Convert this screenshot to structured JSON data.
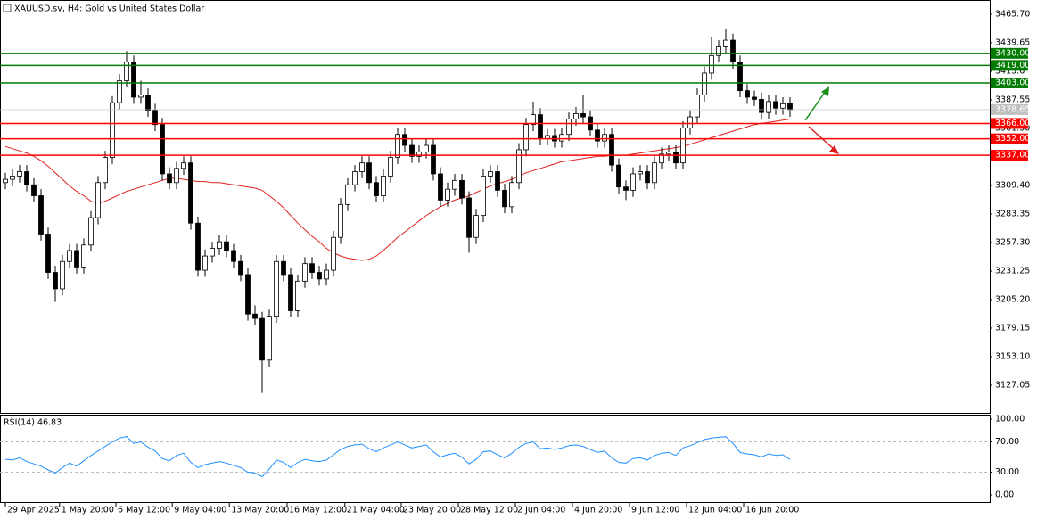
{
  "chart_data": {
    "type": "candlestick",
    "title": "XAUUSD.sv, H4:  Gold vs United States Dollar",
    "xlim": [
      -0.75,
      138
    ],
    "xticks": [
      {
        "value": 0,
        "label": "29 Apr 2025"
      },
      {
        "value": 7.6,
        "label": "1 May 20:00"
      },
      {
        "value": 15.5,
        "label": "6 May 12:00"
      },
      {
        "value": 23.4,
        "label": "9 May 04:00"
      },
      {
        "value": 31.4,
        "label": "13 May 20:00"
      },
      {
        "value": 39.5,
        "label": "16 May 12:00"
      },
      {
        "value": 47.6,
        "label": "21 May 04:00"
      },
      {
        "value": 55.5,
        "label": "23 May 20:00"
      },
      {
        "value": 63.5,
        "label": "28 May 12:00"
      },
      {
        "value": 71.5,
        "label": "2 Jun 04:00"
      },
      {
        "value": 79.5,
        "label": "4 Jun 20:00"
      },
      {
        "value": 87.5,
        "label": "9 Jun 12:00"
      },
      {
        "value": 95.5,
        "label": "12 Jun 04:00"
      },
      {
        "value": 103.5,
        "label": "16 Jun 20:00"
      }
    ],
    "ylim": [
      3101.8,
      3478.7
    ],
    "yticks": [
      {
        "value": 3465.7,
        "label": "3465.70"
      },
      3439.65,
      3413.6,
      3387.55,
      {
        "value": 3361.5,
        "label": "3361.50"
      },
      {
        "value": 3309.4,
        "label": "3309.40"
      },
      3283.35,
      {
        "value": 3257.3,
        "label": "3257.30"
      },
      3231.25,
      {
        "value": 3205.2,
        "label": "3205.20"
      },
      3179.15,
      {
        "value": 3153.1,
        "label": "3153.10"
      },
      3127.05
    ],
    "open": [
      3312,
      3315,
      3318,
      3322,
      3310,
      3300,
      3265,
      3230,
      3215,
      3240,
      3250,
      3235,
      3255,
      3280,
      3312,
      3335,
      3385,
      3405,
      3422,
      3390,
      3392,
      3378,
      3365,
      3320,
      3312,
      3325,
      3330,
      3275,
      3232,
      3245,
      3252,
      3258,
      3250,
      3240,
      3228,
      3192,
      3188,
      3150,
      3190,
      3240,
      3228,
      3195,
      3222,
      3238,
      3230,
      3224,
      3232,
      3262,
      3292,
      3310,
      3322,
      3330,
      3312,
      3300,
      3318,
      3335,
      3356,
      3346,
      3336,
      3340,
      3346,
      3320,
      3296,
      3306,
      3314,
      3298,
      3262,
      3282,
      3318,
      3322,
      3305,
      3290,
      3312,
      3342,
      3365,
      3374,
      3352,
      3355,
      3350,
      3356,
      3370,
      3375,
      3372,
      3360,
      3350,
      3356,
      3328,
      3308,
      3305,
      3320,
      3322,
      3312,
      3330,
      3338,
      3340,
      3330,
      3362,
      3372,
      3392,
      3412,
      3428,
      3436,
      3442,
      3422,
      3396,
      3390,
      3388,
      3376,
      3386,
      3380,
      3384
    ],
    "high": [
      3321,
      3324,
      3328,
      3328,
      3316,
      3306,
      3271,
      3236,
      3246,
      3256,
      3256,
      3261,
      3286,
      3318,
      3341,
      3391,
      3411,
      3432,
      3428,
      3405,
      3398,
      3384,
      3371,
      3326,
      3331,
      3336,
      3336,
      3281,
      3251,
      3258,
      3264,
      3264,
      3256,
      3246,
      3234,
      3200,
      3194,
      3196,
      3246,
      3246,
      3234,
      3228,
      3244,
      3244,
      3236,
      3238,
      3268,
      3298,
      3316,
      3328,
      3336,
      3336,
      3318,
      3324,
      3341,
      3362,
      3362,
      3352,
      3346,
      3352,
      3352,
      3326,
      3312,
      3320,
      3320,
      3304,
      3288,
      3324,
      3328,
      3328,
      3311,
      3318,
      3348,
      3371,
      3386,
      3380,
      3361,
      3361,
      3362,
      3376,
      3381,
      3392,
      3378,
      3366,
      3362,
      3362,
      3334,
      3314,
      3326,
      3328,
      3328,
      3336,
      3344,
      3346,
      3346,
      3368,
      3378,
      3398,
      3418,
      3445,
      3442,
      3452,
      3448,
      3428,
      3402,
      3396,
      3394,
      3392,
      3392,
      3390,
      3390
    ],
    "low": [
      3306,
      3309,
      3312,
      3304,
      3294,
      3259,
      3224,
      3203,
      3209,
      3234,
      3229,
      3229,
      3249,
      3274,
      3306,
      3329,
      3379,
      3399,
      3384,
      3384,
      3372,
      3359,
      3314,
      3306,
      3306,
      3319,
      3269,
      3226,
      3226,
      3239,
      3246,
      3244,
      3234,
      3222,
      3186,
      3182,
      3120,
      3144,
      3184,
      3222,
      3189,
      3189,
      3216,
      3224,
      3218,
      3218,
      3226,
      3256,
      3286,
      3304,
      3316,
      3306,
      3294,
      3294,
      3312,
      3329,
      3340,
      3330,
      3330,
      3334,
      3314,
      3290,
      3290,
      3300,
      3292,
      3248,
      3256,
      3276,
      3312,
      3299,
      3284,
      3284,
      3306,
      3336,
      3359,
      3346,
      3346,
      3344,
      3344,
      3350,
      3364,
      3366,
      3354,
      3344,
      3344,
      3322,
      3302,
      3296,
      3299,
      3314,
      3306,
      3306,
      3324,
      3332,
      3324,
      3324,
      3356,
      3366,
      3386,
      3406,
      3422,
      3430,
      3416,
      3390,
      3384,
      3382,
      3370,
      3370,
      3374,
      3374,
      3372
    ],
    "close": [
      3315,
      3318,
      3322,
      3310,
      3300,
      3265,
      3230,
      3215,
      3240,
      3250,
      3235,
      3255,
      3280,
      3312,
      3335,
      3385,
      3405,
      3422,
      3390,
      3392,
      3378,
      3365,
      3320,
      3312,
      3325,
      3330,
      3275,
      3232,
      3245,
      3252,
      3258,
      3250,
      3240,
      3228,
      3192,
      3188,
      3150,
      3190,
      3240,
      3228,
      3195,
      3222,
      3238,
      3230,
      3224,
      3232,
      3262,
      3292,
      3310,
      3322,
      3330,
      3312,
      3300,
      3318,
      3335,
      3356,
      3346,
      3336,
      3340,
      3346,
      3320,
      3296,
      3306,
      3314,
      3298,
      3262,
      3282,
      3318,
      3322,
      3305,
      3290,
      3312,
      3342,
      3365,
      3374,
      3352,
      3355,
      3350,
      3356,
      3370,
      3375,
      3372,
      3360,
      3350,
      3356,
      3328,
      3308,
      3305,
      3320,
      3322,
      3312,
      3330,
      3338,
      3340,
      3330,
      3362,
      3372,
      3392,
      3412,
      3428,
      3436,
      3442,
      3422,
      3396,
      3390,
      3388,
      3376,
      3386,
      3380,
      3384,
      3378.65
    ],
    "ma": {
      "color": "#e01e1e",
      "values": [
        3345,
        3343,
        3341,
        3339,
        3336,
        3332,
        3327,
        3321,
        3315,
        3309,
        3304,
        3300,
        3295,
        3293,
        3295,
        3298,
        3301,
        3304,
        3306,
        3308,
        3310,
        3312,
        3314,
        3316,
        3316,
        3315,
        3314,
        3313,
        3313,
        3312,
        3312,
        3311,
        3310,
        3309,
        3308,
        3307,
        3305,
        3300,
        3295,
        3289,
        3282,
        3275,
        3269,
        3263,
        3258,
        3252,
        3248,
        3245,
        3243,
        3242,
        3241,
        3242,
        3245,
        3250,
        3256,
        3262,
        3267,
        3272,
        3277,
        3282,
        3286,
        3290,
        3293,
        3296,
        3298,
        3300,
        3303,
        3306,
        3309,
        3311,
        3313,
        3315,
        3318,
        3321,
        3323,
        3325,
        3327,
        3329,
        3331,
        3332,
        3333,
        3334,
        3335,
        3336,
        3336,
        3337,
        3337,
        3337,
        3338,
        3339,
        3340,
        3341,
        3342,
        3343,
        3344,
        3345,
        3347,
        3349,
        3351,
        3353,
        3355,
        3357,
        3359,
        3361,
        3363,
        3365,
        3366,
        3367,
        3368,
        3369,
        3370
      ]
    },
    "levels": [
      {
        "value": 3430,
        "label": "3430.00",
        "color": "#007a00"
      },
      {
        "value": 3419,
        "label": "3419.00",
        "color": "#007a00"
      },
      {
        "value": 3403,
        "label": "3403.00",
        "color": "#007a00"
      },
      {
        "value": 3366,
        "label": "3366.00",
        "color": "#ff0000"
      },
      {
        "value": 3352,
        "label": "3352.00",
        "color": "#ff0000"
      },
      {
        "value": 3337,
        "label": "3337.00",
        "color": "#ff0000"
      }
    ],
    "last_price": {
      "value": 3378.65,
      "label": "3378.65",
      "color": "#c0c0c0"
    },
    "rsi": {
      "label": "RSI(14) 46.83",
      "color": "#1e90ff",
      "ylim": [
        -9.4,
        105.9
      ],
      "yticks": [
        {
          "value": 100,
          "label": "100.00"
        },
        {
          "value": 70,
          "label": "70.00",
          "dashed": true
        },
        {
          "value": 30,
          "label": "30.00",
          "dashed": true
        },
        {
          "value": 0,
          "label": "0.00"
        }
      ],
      "values": [
        47,
        46,
        49,
        44,
        41,
        38,
        33,
        29,
        36,
        42,
        38,
        45,
        52,
        58,
        64,
        70,
        75,
        77,
        68,
        70,
        63,
        58,
        48,
        45,
        52,
        55,
        43,
        36,
        40,
        42,
        44,
        42,
        39,
        36,
        30,
        29,
        24,
        34,
        46,
        43,
        36,
        43,
        47,
        45,
        44,
        46,
        53,
        60,
        64,
        66,
        67,
        61,
        57,
        62,
        66,
        70,
        66,
        62,
        64,
        66,
        57,
        50,
        53,
        55,
        50,
        41,
        47,
        57,
        58,
        53,
        49,
        55,
        63,
        68,
        70,
        61,
        62,
        60,
        62,
        65,
        66,
        64,
        60,
        56,
        58,
        49,
        43,
        42,
        48,
        49,
        46,
        52,
        55,
        56,
        52,
        62,
        65,
        69,
        73,
        75,
        76,
        77,
        68,
        56,
        54,
        53,
        50,
        54,
        52,
        53,
        46.83
      ]
    }
  }
}
